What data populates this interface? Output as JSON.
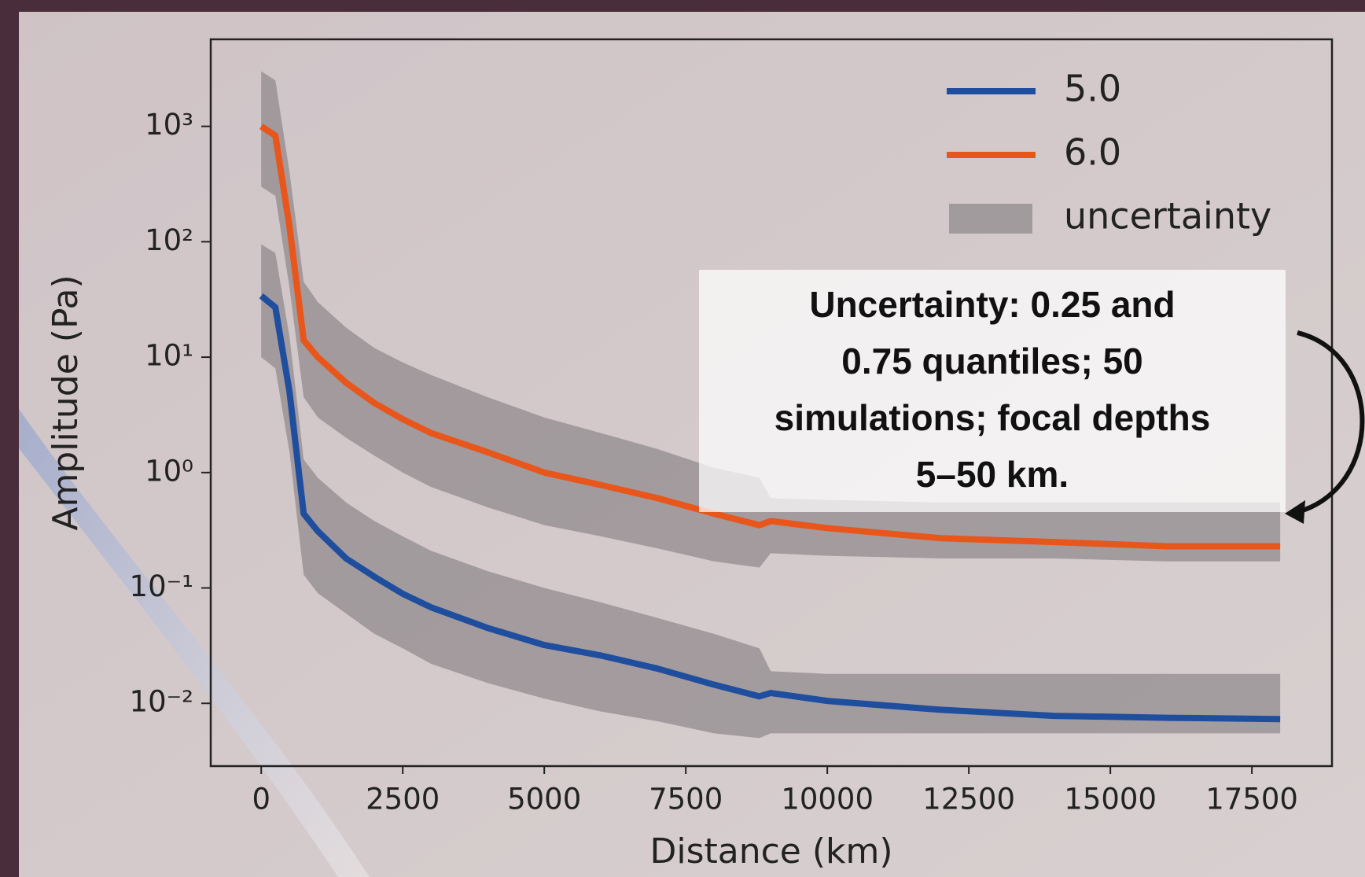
{
  "chart_data": {
    "type": "line",
    "x_label": "Distance (km)",
    "y_label": "Amplitude (Pa)",
    "log_y": true,
    "legend": "upper right",
    "band_label": "uncertainty",
    "band_color": "#7a7478",
    "annotation": [
      "Uncertainty:  0.25 and",
      "0.75 quantiles; 50",
      "simulations; focal depths",
      "5–50 km."
    ],
    "x": [
      0,
      250,
      500,
      750,
      1000,
      1500,
      2000,
      2500,
      3000,
      4000,
      5000,
      6000,
      7000,
      8000,
      8800,
      9000,
      10000,
      12000,
      14000,
      16000,
      18000
    ],
    "xlim": [
      -892,
      18915
    ],
    "xticks": [
      0,
      2500,
      5000,
      7500,
      10000,
      12500,
      15000,
      17500
    ],
    "ylim": [
      0.00286,
      5675
    ],
    "yticks": [
      {
        "value": 0.01,
        "label": "10⁻²"
      },
      {
        "value": 0.1,
        "label": "10⁻¹"
      },
      {
        "value": 1,
        "label": "10⁰"
      },
      {
        "value": 10,
        "label": "10¹"
      },
      {
        "value": 100,
        "label": "10²"
      },
      {
        "value": 1000,
        "label": "10³"
      }
    ],
    "series": [
      {
        "name": "5.0",
        "color": "#1f4e9e",
        "values": [
          34,
          27,
          5,
          0.44,
          0.31,
          0.18,
          0.125,
          0.089,
          0.068,
          0.045,
          0.032,
          0.026,
          0.02,
          0.0145,
          0.0115,
          0.0123,
          0.0105,
          0.0088,
          0.0078,
          0.0075,
          0.0073
        ],
        "lower": [
          10,
          8,
          1.5,
          0.13,
          0.09,
          0.06,
          0.04,
          0.03,
          0.022,
          0.015,
          0.011,
          0.0085,
          0.007,
          0.0055,
          0.005,
          0.0055,
          0.0055,
          0.0055,
          0.0055,
          0.0055,
          0.0055
        ],
        "upper": [
          95,
          80,
          15,
          1.3,
          0.9,
          0.55,
          0.38,
          0.28,
          0.21,
          0.14,
          0.1,
          0.075,
          0.055,
          0.04,
          0.03,
          0.019,
          0.018,
          0.018,
          0.018,
          0.018,
          0.018
        ]
      },
      {
        "name": "6.0",
        "color": "#e8561c",
        "values": [
          1000,
          830,
          135,
          14,
          10,
          6,
          4,
          2.9,
          2.2,
          1.5,
          1.0,
          0.78,
          0.6,
          0.44,
          0.35,
          0.38,
          0.33,
          0.27,
          0.25,
          0.23,
          0.23
        ],
        "lower": [
          300,
          250,
          40,
          4.5,
          3,
          2,
          1.4,
          1,
          0.75,
          0.5,
          0.35,
          0.28,
          0.22,
          0.17,
          0.15,
          0.2,
          0.19,
          0.18,
          0.18,
          0.17,
          0.17
        ],
        "upper": [
          3000,
          2500,
          400,
          45,
          30,
          18,
          12,
          9,
          7,
          4.5,
          3,
          2.2,
          1.6,
          1.1,
          0.9,
          0.6,
          0.58,
          0.55,
          0.55,
          0.55,
          0.55
        ]
      }
    ]
  }
}
